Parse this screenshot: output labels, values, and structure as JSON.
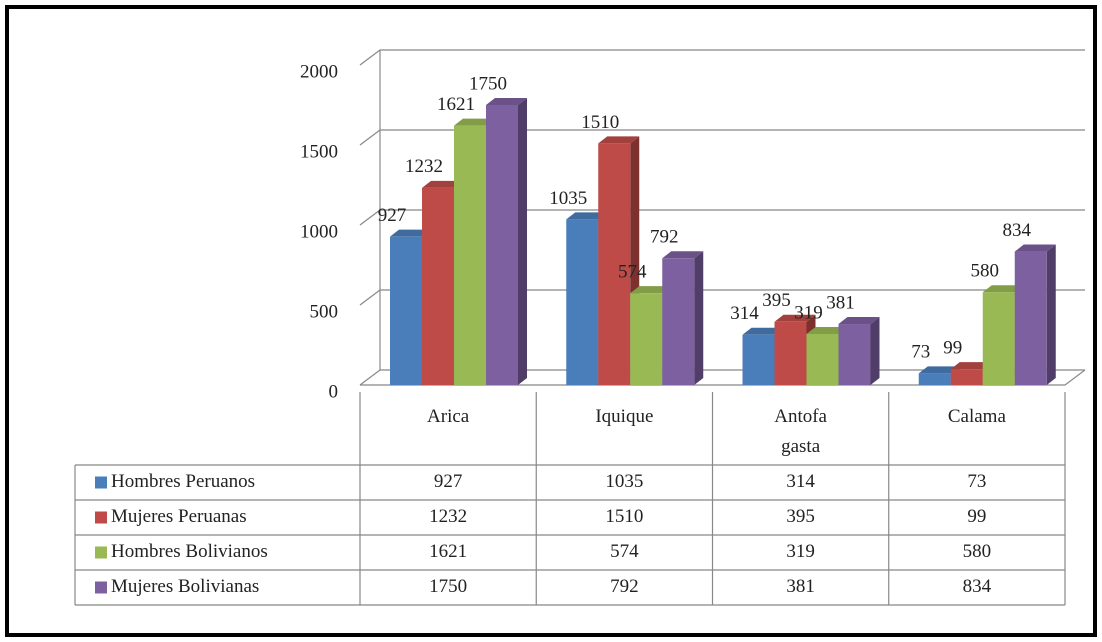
{
  "chart_data": {
    "type": "bar3d",
    "categories": [
      "Arica",
      "Iquique",
      "Antofa\ngasta",
      "Calama"
    ],
    "series": [
      {
        "name": "Hombres Peruanos",
        "color": "#4a7ebb",
        "values": [
          927,
          1035,
          314,
          73
        ]
      },
      {
        "name": "Mujeres Peruanas",
        "color": "#be4b48",
        "values": [
          1232,
          1510,
          395,
          99
        ]
      },
      {
        "name": "Hombres Bolivianos",
        "color": "#98b954",
        "values": [
          1621,
          574,
          319,
          580
        ]
      },
      {
        "name": "Mujeres Bolivianas",
        "color": "#7d60a0",
        "values": [
          1750,
          792,
          381,
          834
        ]
      }
    ],
    "ylim": [
      0,
      2000
    ],
    "yticks": [
      0,
      500,
      1000,
      1500,
      2000
    ],
    "grid": true,
    "data_table": true
  }
}
